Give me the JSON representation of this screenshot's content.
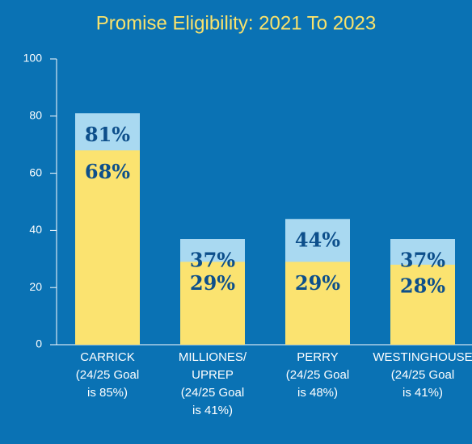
{
  "chart_data": {
    "type": "bar",
    "title": "Promise Eligibility: 2021 To 2023",
    "categories": [
      [
        "CARRICK",
        "(24/25 Goal",
        "is 85%)"
      ],
      [
        "MILLIONES/",
        "UPREP",
        "(24/25 Goal",
        "is 41%)"
      ],
      [
        "PERRY",
        "(24/25 Goal",
        "is 48%)"
      ],
      [
        "WESTINGHOUSE",
        "(24/25 Goal",
        "is 41%)"
      ]
    ],
    "series": [
      {
        "color": "#a9d9f1",
        "values": [
          81,
          37,
          44,
          37
        ],
        "value_labels": [
          "81%",
          "37%",
          "44%",
          "37%"
        ]
      },
      {
        "color": "#fbe370",
        "values": [
          68,
          29,
          29,
          28
        ],
        "value_labels": [
          "68%",
          "29%",
          "29%",
          "28%"
        ]
      }
    ],
    "overlap": true,
    "ylim": [
      0,
      100
    ],
    "yticks": [
      0,
      20,
      40,
      60,
      80,
      100
    ],
    "grid": false
  }
}
